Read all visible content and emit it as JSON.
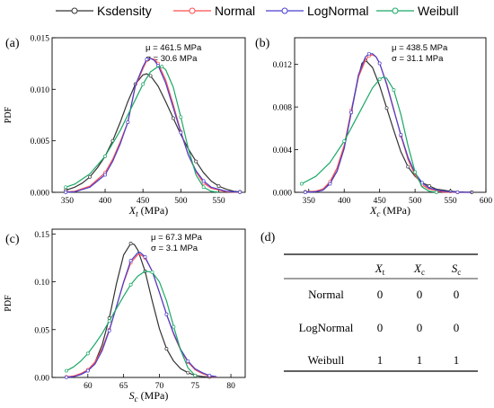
{
  "legend": [
    {
      "name": "Ksdensity",
      "color": "#333333",
      "marker": "circle"
    },
    {
      "name": "Normal",
      "color": "#ff4d4d",
      "marker": "circle"
    },
    {
      "name": "LogNormal",
      "color": "#4a3fcf",
      "marker": "circle"
    },
    {
      "name": "Weibull",
      "color": "#1aa866",
      "marker": "circle"
    }
  ],
  "chart_data": [
    {
      "type": "line",
      "panel": "(a)",
      "ylabel": "PDF",
      "xlabel_main": "X",
      "xlabel_sub": "t",
      "xlabel_unit": " (MPa)",
      "xlim": [
        330,
        585
      ],
      "ylim": [
        0,
        0.015
      ],
      "xticks": [
        350,
        400,
        450,
        500,
        550
      ],
      "yticks": [
        0,
        0.005,
        0.01,
        0.015
      ],
      "ytick_labels": [
        "0.000",
        "0.005",
        "0.010",
        "0.015"
      ],
      "annotation": [
        "μ = 461.5 MPa",
        "σ = 30.6 MPa"
      ],
      "series": [
        {
          "name": "Ksdensity",
          "x": [
            348,
            360,
            370,
            380,
            390,
            400,
            410,
            420,
            430,
            440,
            450,
            455,
            460,
            470,
            480,
            490,
            500,
            510,
            520,
            530,
            540,
            550,
            560,
            570,
            578
          ],
          "y": [
            0.0002,
            0.0005,
            0.0009,
            0.0015,
            0.0024,
            0.0035,
            0.005,
            0.0068,
            0.0088,
            0.0105,
            0.0114,
            0.0115,
            0.0113,
            0.0103,
            0.0088,
            0.0072,
            0.0056,
            0.0042,
            0.003,
            0.0019,
            0.0011,
            0.0006,
            0.0003,
            0.0001,
            5e-05
          ]
        },
        {
          "name": "Normal",
          "x": [
            348,
            360,
            380,
            400,
            410,
            420,
            430,
            440,
            450,
            455,
            460,
            465,
            470,
            480,
            490,
            500,
            510,
            520,
            530,
            540,
            560,
            578
          ],
          "y": [
            3e-05,
            0.0001,
            0.0006,
            0.0019,
            0.0032,
            0.0049,
            0.0068,
            0.0103,
            0.012,
            0.0128,
            0.013,
            0.0129,
            0.0125,
            0.0109,
            0.0085,
            0.0059,
            0.0036,
            0.002,
            0.0009,
            0.0004,
            5e-05,
            1e-05
          ]
        },
        {
          "name": "LogNormal",
          "x": [
            348,
            360,
            380,
            400,
            410,
            420,
            430,
            440,
            450,
            455,
            460,
            465,
            470,
            480,
            490,
            500,
            510,
            520,
            530,
            540,
            560,
            578
          ],
          "y": [
            1e-05,
            5e-05,
            0.0005,
            0.0017,
            0.003,
            0.0047,
            0.0068,
            0.0104,
            0.0122,
            0.0129,
            0.013,
            0.0128,
            0.0123,
            0.0106,
            0.0082,
            0.0058,
            0.0036,
            0.0021,
            0.0011,
            0.0005,
            0.0001,
            2e-05
          ]
        },
        {
          "name": "Weibull",
          "x": [
            348,
            360,
            380,
            400,
            420,
            440,
            450,
            460,
            470,
            475,
            480,
            490,
            500,
            510,
            520,
            530,
            540,
            550
          ],
          "y": [
            0.0005,
            0.0008,
            0.0018,
            0.0035,
            0.006,
            0.009,
            0.0105,
            0.0117,
            0.0122,
            0.0122,
            0.0119,
            0.0102,
            0.0073,
            0.0042,
            0.0017,
            0.0005,
            0.0001,
            1e-05
          ]
        }
      ]
    },
    {
      "type": "line",
      "panel": "(b)",
      "ylabel": "",
      "xlabel_main": "X",
      "xlabel_sub": "c",
      "xlabel_unit": " (MPa)",
      "xlim": [
        330,
        600
      ],
      "ylim": [
        0,
        0.0145
      ],
      "xticks": [
        350,
        400,
        450,
        500,
        550,
        600
      ],
      "yticks": [
        0,
        0.004,
        0.008,
        0.012
      ],
      "ytick_labels": [
        "0.000",
        "0.004",
        "0.008",
        "0.012"
      ],
      "annotation": [
        "μ = 438.5 MPa",
        "σ = 31.1 MPa"
      ],
      "series": [
        {
          "name": "Ksdensity",
          "x": [
            345,
            360,
            370,
            380,
            390,
            400,
            410,
            420,
            425,
            430,
            440,
            450,
            460,
            470,
            480,
            490,
            500,
            510,
            520,
            530,
            540,
            550,
            560,
            570,
            580
          ],
          "y": [
            5e-05,
            0.0001,
            0.0003,
            0.0009,
            0.002,
            0.0042,
            0.0075,
            0.0108,
            0.0121,
            0.0124,
            0.0117,
            0.01,
            0.0079,
            0.0058,
            0.0038,
            0.0024,
            0.0015,
            0.0009,
            0.0006,
            0.0003,
            0.0002,
            0.0001,
            5e-05,
            2e-05,
            1e-05
          ]
        },
        {
          "name": "Normal",
          "x": [
            345,
            360,
            370,
            380,
            390,
            400,
            410,
            420,
            430,
            435,
            440,
            445,
            450,
            460,
            470,
            480,
            490,
            500,
            510,
            520,
            540,
            560,
            580
          ],
          "y": [
            2e-05,
            0.0001,
            0.0003,
            0.001,
            0.0023,
            0.0044,
            0.0077,
            0.0108,
            0.0124,
            0.0128,
            0.0129,
            0.0127,
            0.0121,
            0.0102,
            0.0078,
            0.0053,
            0.0031,
            0.0016,
            0.0007,
            0.0003,
            3e-05,
            2e-06,
            1e-07
          ]
        },
        {
          "name": "LogNormal",
          "x": [
            345,
            360,
            370,
            380,
            390,
            400,
            410,
            420,
            430,
            435,
            440,
            445,
            450,
            460,
            470,
            480,
            490,
            500,
            510,
            520,
            540,
            560,
            580
          ],
          "y": [
            5e-06,
            5e-05,
            0.0002,
            0.0008,
            0.002,
            0.0041,
            0.0075,
            0.011,
            0.0127,
            0.013,
            0.013,
            0.0127,
            0.0121,
            0.0101,
            0.0077,
            0.0054,
            0.0033,
            0.0018,
            0.0009,
            0.0004,
            0.0001,
            1e-05,
            1e-06
          ]
        },
        {
          "name": "Weibull",
          "x": [
            340,
            360,
            380,
            400,
            420,
            440,
            450,
            455,
            460,
            470,
            480,
            490,
            500,
            510,
            520,
            530
          ],
          "y": [
            0.0008,
            0.0015,
            0.0028,
            0.0048,
            0.0073,
            0.0098,
            0.0106,
            0.0108,
            0.0107,
            0.0096,
            0.0073,
            0.0044,
            0.0019,
            0.0005,
            0.0001,
            1e-05
          ]
        }
      ]
    },
    {
      "type": "line",
      "panel": "(c)",
      "ylabel": "PDF",
      "xlabel_main": "S",
      "xlabel_sub": "c",
      "xlabel_unit": " (MPa)",
      "xlim": [
        55,
        82
      ],
      "ylim": [
        0,
        0.155
      ],
      "xticks": [
        60,
        65,
        70,
        75,
        80
      ],
      "yticks": [
        0,
        0.05,
        0.1,
        0.15
      ],
      "ytick_labels": [
        "0.00",
        "0.05",
        "0.10",
        "0.15"
      ],
      "annotation": [
        "μ = 67.3 MPa",
        "σ = 3.1 MPa"
      ],
      "series": [
        {
          "name": "Ksdensity",
          "x": [
            57,
            58,
            59,
            60,
            61,
            62,
            63,
            64,
            65,
            66,
            66.5,
            67,
            68,
            69,
            70,
            71,
            72,
            73,
            74,
            75,
            76,
            77,
            78
          ],
          "y": [
            0.0005,
            0.001,
            0.003,
            0.007,
            0.016,
            0.034,
            0.062,
            0.098,
            0.128,
            0.14,
            0.139,
            0.133,
            0.111,
            0.08,
            0.051,
            0.03,
            0.017,
            0.009,
            0.005,
            0.002,
            0.001,
            0.0005,
            0.0002
          ]
        },
        {
          "name": "Normal",
          "x": [
            57,
            58,
            59,
            60,
            61,
            62,
            63,
            64,
            65,
            66,
            67,
            67.3,
            68,
            69,
            70,
            71,
            72,
            73,
            74,
            75,
            76,
            77,
            78
          ],
          "y": [
            0.0005,
            0.0015,
            0.004,
            0.008,
            0.016,
            0.03,
            0.05,
            0.074,
            0.099,
            0.12,
            0.1285,
            0.1287,
            0.125,
            0.111,
            0.089,
            0.066,
            0.045,
            0.028,
            0.016,
            0.008,
            0.004,
            0.0015,
            0.0005
          ]
        },
        {
          "name": "LogNormal",
          "x": [
            57,
            58,
            59,
            60,
            61,
            62,
            63,
            64,
            65,
            66,
            67,
            67.3,
            68,
            69,
            70,
            71,
            72,
            73,
            74,
            75,
            76,
            77,
            78
          ],
          "y": [
            0.0002,
            0.0008,
            0.003,
            0.007,
            0.014,
            0.028,
            0.049,
            0.074,
            0.1,
            0.122,
            0.1305,
            0.1308,
            0.126,
            0.111,
            0.089,
            0.066,
            0.046,
            0.029,
            0.017,
            0.009,
            0.005,
            0.002,
            0.0008
          ]
        },
        {
          "name": "Weibull",
          "x": [
            57,
            58,
            59,
            60,
            61,
            62,
            63,
            64,
            65,
            66,
            67,
            68,
            69,
            70,
            71,
            72,
            73,
            74,
            75
          ],
          "y": [
            0.007,
            0.011,
            0.017,
            0.025,
            0.035,
            0.046,
            0.059,
            0.072,
            0.085,
            0.097,
            0.106,
            0.111,
            0.11,
            0.1,
            0.08,
            0.053,
            0.028,
            0.01,
            0.002
          ]
        }
      ]
    }
  ],
  "table": {
    "panel": "(d)",
    "columns": [
      {
        "main": "X",
        "sub": "t"
      },
      {
        "main": "X",
        "sub": "c"
      },
      {
        "main": "S",
        "sub": "c"
      }
    ],
    "rows": [
      {
        "label": "Normal",
        "values": [
          "0",
          "0",
          "0"
        ]
      },
      {
        "label": "LogNormal",
        "values": [
          "0",
          "0",
          "0"
        ]
      },
      {
        "label": "Weibull",
        "values": [
          "1",
          "1",
          "1"
        ]
      }
    ]
  }
}
